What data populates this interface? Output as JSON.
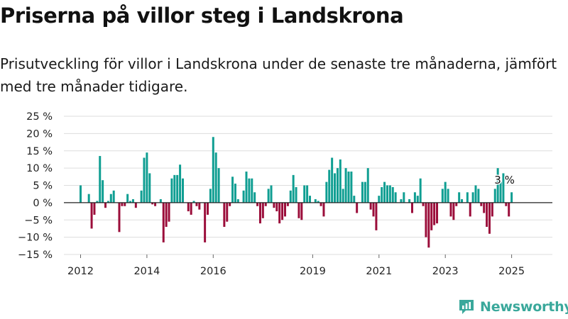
{
  "header": {
    "title": "Priserna på villor steg i Landskrona",
    "subtitle": "Prisutveckling för villor i Landskrona under de senaste tre månaderna, jämfört med tre månader tidigare."
  },
  "brand": {
    "name": "Newsworthy",
    "icon": "newsworthy-logo-icon",
    "color": "#3aa89b"
  },
  "colors": {
    "positive": "#0f9e92",
    "negative": "#9b0d3a",
    "gridline": "#dddddd",
    "zeroline": "#222222"
  },
  "chart_data": {
    "type": "bar",
    "start": "2012-01",
    "values": [
      5.0,
      0.0,
      0.0,
      2.5,
      -7.5,
      -3.5,
      0.5,
      13.5,
      6.5,
      -1.5,
      0.5,
      2.5,
      3.5,
      0.0,
      -8.5,
      -1.0,
      -1.0,
      2.5,
      0.5,
      1.0,
      -1.5,
      0.0,
      3.5,
      13.0,
      14.5,
      8.5,
      -0.5,
      -1.0,
      0.0,
      1.0,
      -11.5,
      -7.0,
      -5.5,
      7.0,
      8.0,
      8.0,
      11.0,
      7.0,
      0.0,
      -2.5,
      -3.5,
      0.5,
      -1.0,
      -2.0,
      0.0,
      -11.5,
      -3.5,
      4.0,
      19.0,
      14.5,
      10.0,
      0.0,
      -7.0,
      -5.5,
      -1.0,
      7.5,
      5.5,
      1.0,
      0.0,
      3.5,
      9.0,
      7.0,
      7.0,
      3.0,
      -1.0,
      -6.0,
      -4.5,
      -1.0,
      4.0,
      5.0,
      -1.5,
      -2.5,
      -6.0,
      -5.0,
      -4.0,
      -1.0,
      3.5,
      8.0,
      4.5,
      -4.5,
      -5.0,
      5.0,
      5.0,
      2.0,
      0.0,
      1.0,
      0.5,
      -1.0,
      -4.0,
      6.0,
      9.5,
      13.0,
      8.5,
      10.0,
      12.5,
      4.0,
      10.0,
      9.0,
      9.0,
      2.0,
      -3.0,
      0.0,
      6.0,
      6.0,
      10.0,
      -2.0,
      -4.0,
      -8.0,
      2.0,
      4.5,
      6.0,
      5.0,
      5.0,
      4.5,
      3.0,
      0.0,
      1.0,
      3.0,
      0.0,
      1.0,
      -3.0,
      3.0,
      2.0,
      7.0,
      -1.0,
      -10.0,
      -13.0,
      -8.0,
      -6.5,
      -6.0,
      0.0,
      4.0,
      6.0,
      4.0,
      -4.0,
      -5.0,
      -1.0,
      3.0,
      1.0,
      0.0,
      3.0,
      -4.0,
      3.0,
      5.0,
      4.0,
      -1.0,
      -3.0,
      -7.0,
      -9.0,
      -4.0,
      4.0,
      10.0,
      6.0,
      8.5,
      -1.0,
      -4.0,
      3.0
    ],
    "x_ticks": [
      "2012",
      "2014",
      "2016",
      "2019",
      "2021",
      "2023",
      "2025"
    ],
    "y_ticks": [
      "25 %",
      "20 %",
      "15 %",
      "10 %",
      "5 %",
      "0 %",
      "−5 %",
      "−10 %",
      "−15 %"
    ],
    "ylim": [
      -15,
      25
    ],
    "last_value_label": "3 %",
    "grid": true,
    "xlabel": "",
    "ylabel": ""
  }
}
